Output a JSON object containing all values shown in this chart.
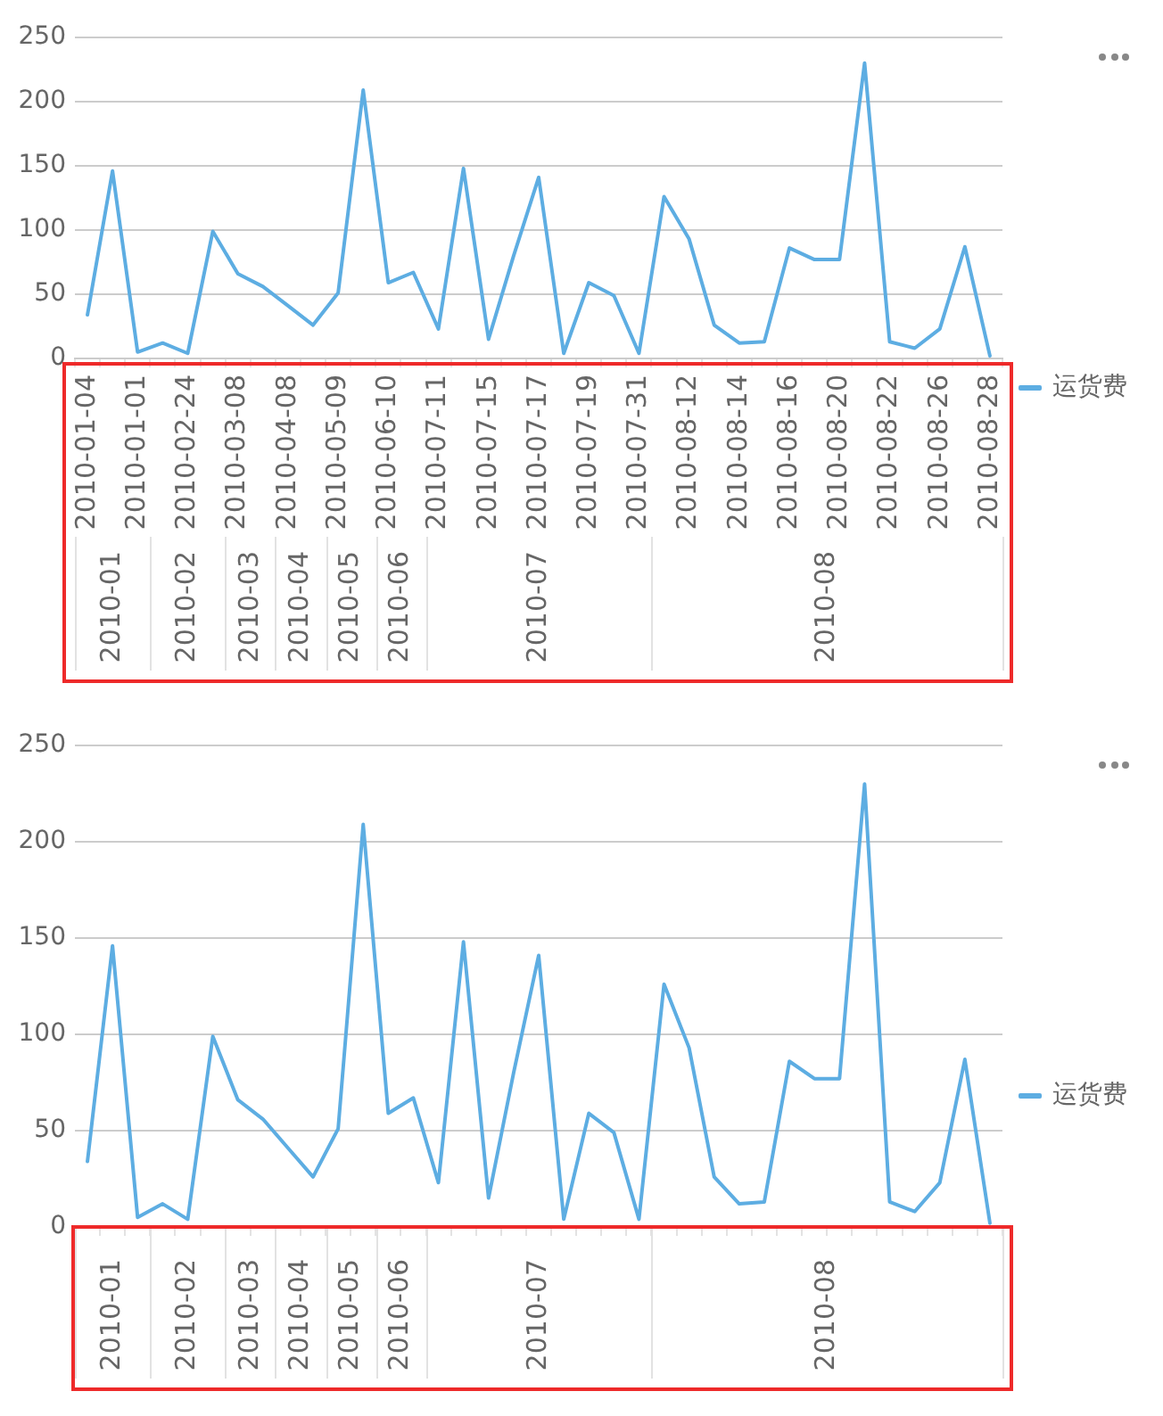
{
  "chart_data": [
    {
      "type": "line",
      "categories": [
        "2010-01-04",
        null,
        "2010-01-01",
        null,
        "2010-02-24",
        null,
        "2010-03-08",
        null,
        "2010-04-08",
        null,
        "2010-05-09",
        null,
        "2010-06-10",
        null,
        "2010-07-11",
        null,
        "2010-07-15",
        null,
        "2010-07-17",
        null,
        "2010-07-19",
        null,
        "2010-07-31",
        null,
        "2010-08-12",
        null,
        "2010-08-14",
        null,
        "2010-08-16",
        null,
        "2010-08-20",
        null,
        "2010-08-22",
        null,
        "2010-08-26",
        null,
        "2010-08-28"
      ],
      "series": [
        {
          "name": "运货费",
          "color": "#5dade2",
          "values": [
            34,
            146,
            5,
            12,
            4,
            99,
            66,
            56,
            41,
            26,
            51,
            209,
            59,
            67,
            23,
            148,
            15,
            80,
            141,
            4,
            59,
            49,
            4,
            126,
            93,
            26,
            12,
            13,
            86,
            77,
            77,
            230,
            13,
            8,
            23,
            87,
            2
          ]
        }
      ],
      "ylim": [
        0,
        250
      ],
      "yticks": [
        0,
        50,
        100,
        150,
        200,
        250
      ],
      "annotations": [
        "2010-01",
        "2010-02",
        "2010-03",
        "2010-04",
        "2010-05",
        "2010-06",
        "2010-07",
        "2010-08"
      ],
      "grid": "y",
      "legend": "right"
    },
    {
      "type": "line",
      "categories": [
        null,
        null,
        null,
        null,
        null,
        null,
        null,
        null,
        null,
        null,
        null,
        null,
        null,
        null,
        null,
        null,
        null,
        null,
        null,
        null,
        null,
        null,
        null,
        null,
        null,
        null,
        null,
        null,
        null,
        null,
        null,
        null,
        null,
        null,
        null,
        null,
        null
      ],
      "series": [
        {
          "name": "运货费",
          "color": "#5dade2",
          "values": [
            34,
            146,
            5,
            12,
            4,
            99,
            66,
            56,
            41,
            26,
            51,
            209,
            59,
            67,
            23,
            148,
            15,
            80,
            141,
            4,
            59,
            49,
            4,
            126,
            93,
            26,
            12,
            13,
            86,
            77,
            77,
            230,
            13,
            8,
            23,
            87,
            2
          ]
        }
      ],
      "ylim": [
        0,
        250
      ],
      "yticks": [
        0,
        50,
        100,
        150,
        200,
        250
      ],
      "annotations": [
        "2010-01",
        "2010-02",
        "2010-03",
        "2010-04",
        "2010-05",
        "2010-06",
        "2010-07",
        "2010-08"
      ],
      "grid": "y",
      "legend": "right"
    }
  ]
}
